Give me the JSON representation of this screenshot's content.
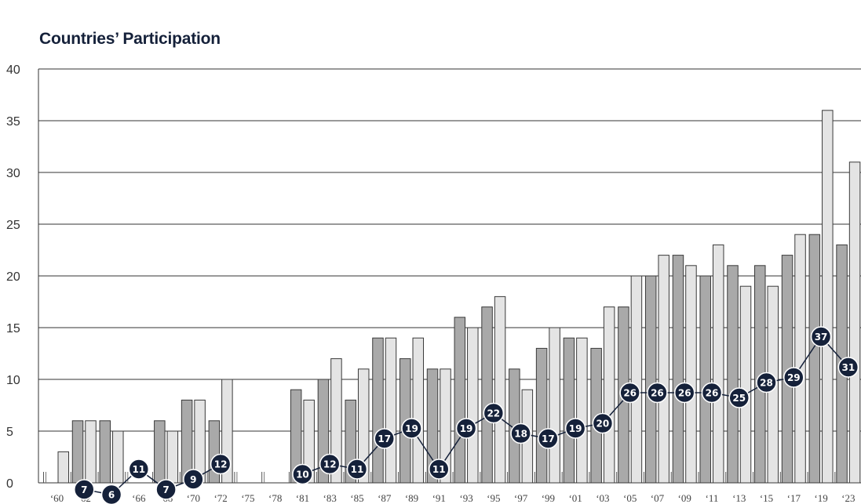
{
  "chart_data": {
    "type": "bar",
    "title": "Countries’ Participation",
    "xlabel": "",
    "ylabel": "",
    "ylim": [
      0,
      40
    ],
    "yticks": [
      0,
      5,
      10,
      15,
      20,
      25,
      30,
      35,
      40
    ],
    "grid": true,
    "legend": "none",
    "colors": {
      "bar_dark": "#a9a9a9",
      "bar_light": "#e4e4e4",
      "marker": "#15213a",
      "line": "#15213a",
      "grid": "#333333"
    },
    "categories": [
      "‘60",
      "‘62",
      "‘64",
      "‘66",
      "‘68",
      "‘70",
      "‘72",
      "‘75",
      "‘78",
      "‘81",
      "‘83",
      "‘85",
      "‘87",
      "‘89",
      "‘91",
      "‘93",
      "‘95",
      "‘97",
      "‘99",
      "‘01",
      "‘03",
      "‘05",
      "‘07",
      "‘09",
      "‘11",
      "‘13",
      "‘15",
      "‘17",
      "‘19",
      "‘23"
    ],
    "series": [
      {
        "values": [
          null,
          6,
          6,
          null,
          6,
          8,
          6,
          null,
          null,
          9,
          10,
          8,
          14,
          12,
          11,
          16,
          17,
          11,
          13,
          14,
          13,
          17,
          20,
          22,
          20,
          21,
          21,
          22,
          24,
          23
        ]
      },
      {
        "values": [
          3,
          6,
          5,
          null,
          5,
          8,
          10,
          null,
          null,
          8,
          12,
          11,
          14,
          14,
          11,
          15,
          18,
          9,
          15,
          14,
          17,
          20,
          22,
          21,
          23,
          19,
          19,
          24,
          36,
          31
        ]
      },
      {
        "values": [
          null,
          7,
          6,
          11,
          7,
          9,
          12,
          null,
          null,
          10,
          12,
          11,
          17,
          19,
          11,
          19,
          22,
          18,
          17,
          19,
          20,
          26,
          26,
          26,
          26,
          25,
          28,
          29,
          37,
          31
        ]
      }
    ]
  }
}
